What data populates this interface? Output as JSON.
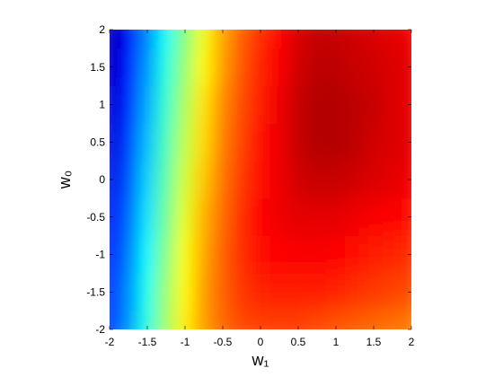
{
  "chart_data": {
    "type": "contour",
    "xlabel": "w₁",
    "ylabel": "w₀",
    "colormap": "jet",
    "clim": [
      0,
      1
    ],
    "x": [
      -2,
      -1.75,
      -1.5,
      -1.25,
      -1,
      -0.75,
      -0.5,
      -0.25,
      0,
      0.25,
      0.5,
      0.75,
      1,
      1.25,
      1.5,
      1.75,
      2
    ],
    "y": [
      -2,
      -1.5,
      -1,
      -0.5,
      0,
      0.5,
      1,
      1.5,
      2
    ],
    "z": [
      [
        0.16,
        0.27,
        0.4,
        0.53,
        0.64,
        0.72,
        0.77,
        0.8,
        0.81,
        0.81,
        0.81,
        0.8,
        0.79,
        0.78,
        0.77,
        0.76,
        0.75
      ],
      [
        0.15,
        0.26,
        0.39,
        0.52,
        0.63,
        0.72,
        0.78,
        0.82,
        0.84,
        0.85,
        0.85,
        0.85,
        0.84,
        0.83,
        0.82,
        0.81,
        0.8
      ],
      [
        0.14,
        0.24,
        0.37,
        0.5,
        0.62,
        0.71,
        0.78,
        0.83,
        0.86,
        0.87,
        0.88,
        0.88,
        0.87,
        0.86,
        0.85,
        0.84,
        0.83
      ],
      [
        0.12,
        0.22,
        0.35,
        0.48,
        0.6,
        0.7,
        0.77,
        0.83,
        0.87,
        0.89,
        0.9,
        0.9,
        0.9,
        0.89,
        0.88,
        0.87,
        0.86
      ],
      [
        0.1,
        0.2,
        0.33,
        0.46,
        0.58,
        0.68,
        0.76,
        0.82,
        0.86,
        0.89,
        0.92,
        0.93,
        0.93,
        0.92,
        0.91,
        0.9,
        0.89
      ],
      [
        0.09,
        0.18,
        0.31,
        0.44,
        0.56,
        0.66,
        0.75,
        0.81,
        0.86,
        0.89,
        0.93,
        0.95,
        0.95,
        0.94,
        0.92,
        0.91,
        0.9
      ],
      [
        0.08,
        0.16,
        0.29,
        0.42,
        0.54,
        0.65,
        0.74,
        0.8,
        0.85,
        0.89,
        0.93,
        0.95,
        0.95,
        0.94,
        0.93,
        0.91,
        0.9
      ],
      [
        0.06,
        0.14,
        0.27,
        0.4,
        0.52,
        0.63,
        0.72,
        0.79,
        0.84,
        0.88,
        0.92,
        0.94,
        0.94,
        0.93,
        0.92,
        0.91,
        0.9
      ],
      [
        0.04,
        0.12,
        0.25,
        0.38,
        0.5,
        0.61,
        0.71,
        0.78,
        0.83,
        0.87,
        0.91,
        0.93,
        0.93,
        0.92,
        0.91,
        0.9,
        0.89
      ]
    ],
    "xlim": [
      -2,
      2
    ],
    "ylim": [
      -2,
      2
    ],
    "xticks": [
      -2,
      -1.5,
      -1,
      -0.5,
      0,
      0.5,
      1,
      1.5,
      2
    ],
    "yticks": [
      -2,
      -1.5,
      -1,
      -0.5,
      0,
      0.5,
      1,
      1.5,
      2
    ]
  }
}
